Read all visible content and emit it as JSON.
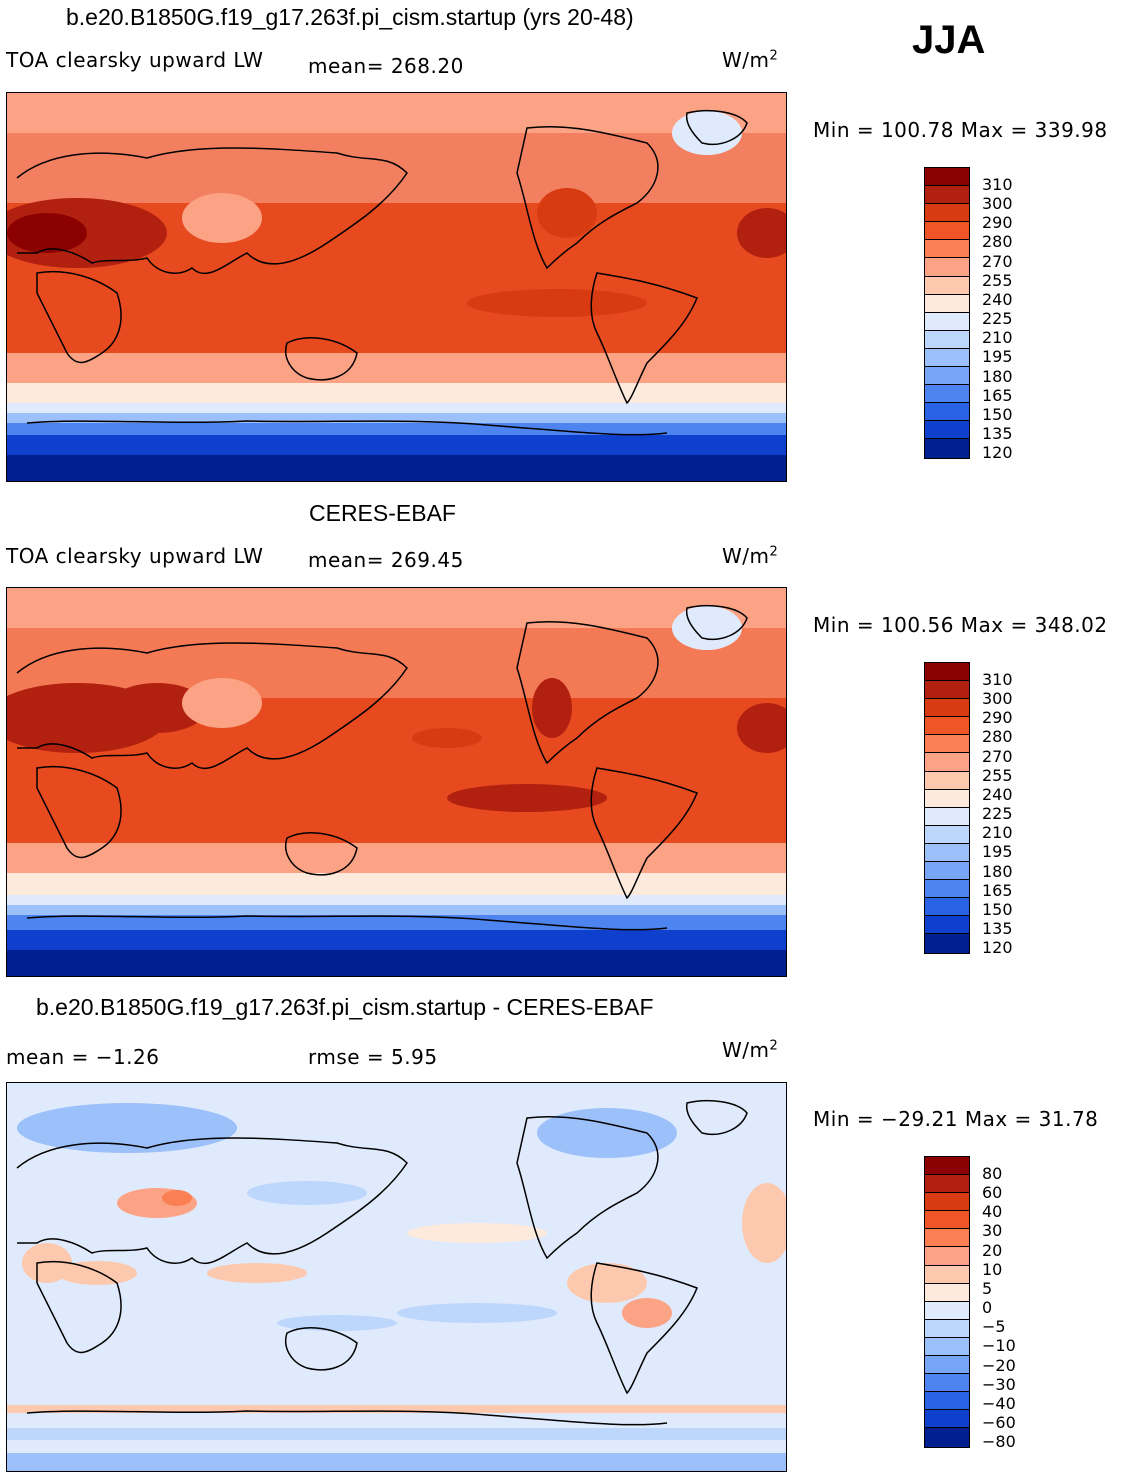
{
  "season": "JJA",
  "units_label": "W/m",
  "units_sup": "2",
  "panels": [
    {
      "id": "model",
      "title": "b.e20.B1850G.f19_g17.263f.pi_cism.startup (yrs 20-48)",
      "variable": "TOA clearsky upward LW",
      "stat1": "mean= 268.20",
      "stat2": "",
      "minmax": "Min = 100.78 Max = 339.98",
      "colorbar_levels": [
        "310",
        "300",
        "290",
        "280",
        "270",
        "255",
        "240",
        "225",
        "210",
        "195",
        "180",
        "165",
        "150",
        "135",
        "120"
      ]
    },
    {
      "id": "obs",
      "title": "CERES-EBAF",
      "variable": "TOA clearsky upward LW",
      "stat1": "mean= 269.45",
      "stat2": "",
      "minmax": "Min = 100.56 Max = 348.02",
      "colorbar_levels": [
        "310",
        "300",
        "290",
        "280",
        "270",
        "255",
        "240",
        "225",
        "210",
        "195",
        "180",
        "165",
        "150",
        "135",
        "120"
      ]
    },
    {
      "id": "diff",
      "title": "b.e20.B1850G.f19_g17.263f.pi_cism.startup - CERES-EBAF",
      "variable": "",
      "stat1": "mean =  −1.26",
      "stat2": "rmse =    5.95",
      "minmax": "Min = −29.21 Max =  31.78",
      "colorbar_levels": [
        "80",
        "60",
        "40",
        "30",
        "20",
        "10",
        "5",
        "0",
        "−5",
        "−10",
        "−20",
        "−30",
        "−40",
        "−60",
        "−80"
      ]
    }
  ],
  "colors": {
    "full_scale": [
      "#8b0000",
      "#b22010",
      "#d83a12",
      "#ef5526",
      "#fa7f52",
      "#fca385",
      "#fdc9ae",
      "#feeadd",
      "#dfeafc",
      "#bdd6fb",
      "#9cc0fa",
      "#78a6f6",
      "#4d84f0",
      "#2962e5",
      "#0f3fcd",
      "#00208f"
    ],
    "diff_scale": [
      "#8b0000",
      "#b22010",
      "#d83a12",
      "#ef5526",
      "#fa7f52",
      "#fca385",
      "#fdc9ae",
      "#feeadd",
      "#dfeafc",
      "#bdd6fb",
      "#9cc0fa",
      "#78a6f6",
      "#4d84f0",
      "#2962e5",
      "#0f3fcd",
      "#00208f"
    ]
  }
}
